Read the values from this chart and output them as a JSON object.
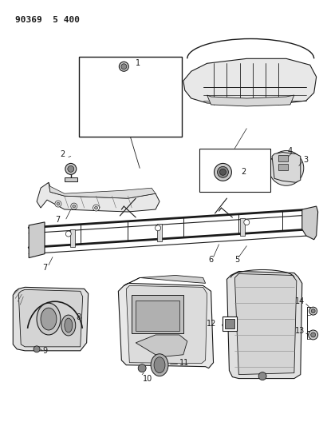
{
  "title": "90369  5 400",
  "background_color": "#ffffff",
  "line_color": "#1a1a1a",
  "figsize": [
    4.06,
    5.33
  ],
  "dpi": 100
}
